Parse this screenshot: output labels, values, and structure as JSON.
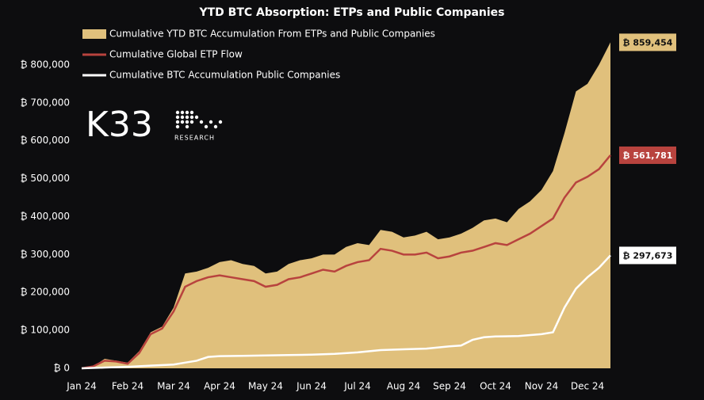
{
  "chart_data": {
    "type": "area_line",
    "title": "YTD BTC Absorption: ETPs and Public Companies",
    "logo": {
      "name": "K33",
      "sub": "RESEARCH"
    },
    "xlim": [
      0,
      11.5
    ],
    "xticks": [
      {
        "value": 0,
        "label": "Jan 24"
      },
      {
        "value": 1,
        "label": "Feb 24"
      },
      {
        "value": 2,
        "label": "Mar 24"
      },
      {
        "value": 3,
        "label": "Apr 24"
      },
      {
        "value": 4,
        "label": "May 24"
      },
      {
        "value": 5,
        "label": "Jun 24"
      },
      {
        "value": 6,
        "label": "Jul 24"
      },
      {
        "value": 7,
        "label": "Aug 24"
      },
      {
        "value": 8,
        "label": "Sep 24"
      },
      {
        "value": 9,
        "label": "Oct 24"
      },
      {
        "value": 10,
        "label": "Nov 24"
      },
      {
        "value": 11,
        "label": "Dec 24"
      }
    ],
    "ylim": [
      0,
      900000
    ],
    "yticks": [
      {
        "value": 0,
        "label": "₿ 0"
      },
      {
        "value": 100000,
        "label": "₿ 100,000"
      },
      {
        "value": 200000,
        "label": "₿ 200,000"
      },
      {
        "value": 300000,
        "label": "₿ 300,000"
      },
      {
        "value": 400000,
        "label": "₿ 400,000"
      },
      {
        "value": 500000,
        "label": "₿ 500,000"
      },
      {
        "value": 600000,
        "label": "₿ 600,000"
      },
      {
        "value": 700000,
        "label": "₿ 700,000"
      },
      {
        "value": 800000,
        "label": "₿ 800,000"
      }
    ],
    "grid": false,
    "series": [
      {
        "name": "Cumulative YTD BTC Accumulation From ETPs and Public Companies",
        "kind": "area",
        "color": "#e0c07c",
        "label_text_color": "#111111",
        "end_label": "₿ 859,454",
        "x": [
          0,
          0.25,
          0.5,
          0.75,
          1,
          1.25,
          1.5,
          1.75,
          2,
          2.25,
          2.5,
          2.75,
          3,
          3.25,
          3.5,
          3.75,
          4,
          4.25,
          4.5,
          4.75,
          5,
          5.25,
          5.5,
          5.75,
          6,
          6.25,
          6.5,
          6.75,
          7,
          7.25,
          7.5,
          7.75,
          8,
          8.25,
          8.5,
          8.75,
          9,
          9.25,
          9.5,
          9.75,
          10,
          10.25,
          10.5,
          10.75,
          11,
          11.25,
          11.5
        ],
        "values": [
          0,
          5000,
          25000,
          20000,
          15000,
          45000,
          95000,
          110000,
          160000,
          250000,
          255000,
          265000,
          280000,
          285000,
          275000,
          270000,
          250000,
          255000,
          275000,
          285000,
          290000,
          300000,
          300000,
          320000,
          330000,
          325000,
          365000,
          360000,
          345000,
          350000,
          360000,
          340000,
          345000,
          355000,
          370000,
          390000,
          395000,
          385000,
          420000,
          440000,
          470000,
          520000,
          620000,
          730000,
          750000,
          800000,
          859454
        ]
      },
      {
        "name": "Cumulative Global ETP Flow",
        "kind": "line",
        "color": "#b8433e",
        "label_text_color": "#ffffff",
        "end_label": "₿ 561,781",
        "x": [
          0,
          0.25,
          0.5,
          0.75,
          1,
          1.25,
          1.5,
          1.75,
          2,
          2.25,
          2.5,
          2.75,
          3,
          3.25,
          3.5,
          3.75,
          4,
          4.25,
          4.5,
          4.75,
          5,
          5.25,
          5.5,
          5.75,
          6,
          6.25,
          6.5,
          6.75,
          7,
          7.25,
          7.5,
          7.75,
          8,
          8.25,
          8.5,
          8.75,
          9,
          9.25,
          9.5,
          9.75,
          10,
          10.25,
          10.5,
          10.75,
          11,
          11.25,
          11.5
        ],
        "values": [
          0,
          5000,
          20000,
          18000,
          12000,
          40000,
          90000,
          105000,
          150000,
          215000,
          230000,
          240000,
          245000,
          240000,
          235000,
          230000,
          215000,
          220000,
          235000,
          240000,
          250000,
          260000,
          255000,
          270000,
          280000,
          285000,
          315000,
          310000,
          300000,
          300000,
          305000,
          290000,
          295000,
          305000,
          310000,
          320000,
          330000,
          325000,
          340000,
          355000,
          375000,
          395000,
          450000,
          490000,
          505000,
          525000,
          561781
        ]
      },
      {
        "name": "Cumulative BTC Accumulation Public Companies",
        "kind": "line",
        "color": "#ffffff",
        "label_text_color": "#111111",
        "end_label": "₿ 297,673",
        "x": [
          0,
          0.5,
          1,
          1.5,
          2,
          2.25,
          2.5,
          2.75,
          3,
          3.5,
          4,
          4.5,
          5,
          5.5,
          6,
          6.5,
          7,
          7.5,
          8,
          8.25,
          8.5,
          8.75,
          9,
          9.5,
          10,
          10.25,
          10.5,
          10.75,
          11,
          11.25,
          11.5
        ],
        "values": [
          0,
          2000,
          4000,
          7000,
          10000,
          15000,
          20000,
          30000,
          32000,
          33000,
          34000,
          35000,
          36000,
          38000,
          42000,
          48000,
          50000,
          52000,
          58000,
          60000,
          75000,
          82000,
          84000,
          85000,
          90000,
          95000,
          160000,
          210000,
          240000,
          265000,
          297673
        ]
      }
    ]
  }
}
